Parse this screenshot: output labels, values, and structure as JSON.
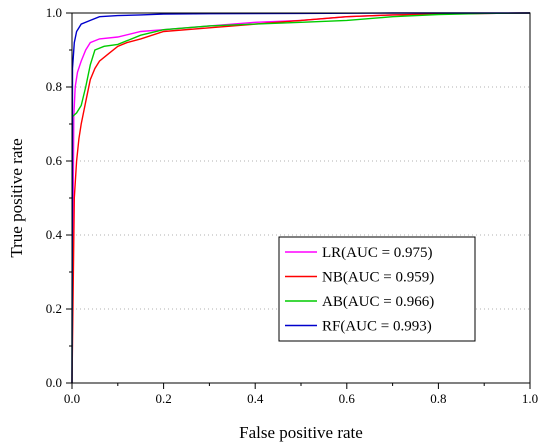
{
  "chart_data": {
    "type": "line",
    "xlabel": "False positive rate",
    "ylabel": "True positive rate",
    "xlim": [
      0,
      1
    ],
    "ylim": [
      0,
      1
    ],
    "x_ticks": [
      "0.0",
      "0.2",
      "0.4",
      "0.6",
      "0.8",
      "1.0"
    ],
    "y_ticks": [
      "0.0",
      "0.2",
      "0.4",
      "0.6",
      "0.8",
      "1.0"
    ],
    "grid": "horizontal dotted",
    "legend_position": "bottom-right",
    "series": [
      {
        "name": "LR(AUC = 0.975)",
        "color": "#ff00ff",
        "points": [
          [
            0,
            0
          ],
          [
            0.002,
            0.4
          ],
          [
            0.004,
            0.72
          ],
          [
            0.007,
            0.8
          ],
          [
            0.012,
            0.84
          ],
          [
            0.02,
            0.87
          ],
          [
            0.03,
            0.9
          ],
          [
            0.04,
            0.92
          ],
          [
            0.06,
            0.93
          ],
          [
            0.1,
            0.935
          ],
          [
            0.15,
            0.95
          ],
          [
            0.2,
            0.955
          ],
          [
            0.3,
            0.965
          ],
          [
            0.4,
            0.975
          ],
          [
            0.5,
            0.98
          ],
          [
            0.6,
            0.99
          ],
          [
            0.7,
            0.995
          ],
          [
            0.8,
            0.998
          ],
          [
            0.9,
            0.999
          ],
          [
            1.0,
            1.0
          ]
        ]
      },
      {
        "name": "NB(AUC = 0.959)",
        "color": "#ff0000",
        "points": [
          [
            0,
            0
          ],
          [
            0.005,
            0.5
          ],
          [
            0.01,
            0.6
          ],
          [
            0.015,
            0.66
          ],
          [
            0.02,
            0.7
          ],
          [
            0.03,
            0.76
          ],
          [
            0.04,
            0.82
          ],
          [
            0.05,
            0.85
          ],
          [
            0.06,
            0.87
          ],
          [
            0.08,
            0.89
          ],
          [
            0.1,
            0.91
          ],
          [
            0.12,
            0.92
          ],
          [
            0.15,
            0.93
          ],
          [
            0.2,
            0.95
          ],
          [
            0.3,
            0.96
          ],
          [
            0.4,
            0.97
          ],
          [
            0.5,
            0.98
          ],
          [
            0.6,
            0.99
          ],
          [
            0.7,
            0.995
          ],
          [
            0.85,
            0.998
          ],
          [
            1.0,
            1.0
          ]
        ]
      },
      {
        "name": "AB(AUC = 0.966)",
        "color": "#00cc00",
        "points": [
          [
            0,
            0
          ],
          [
            0.001,
            0.72
          ],
          [
            0.01,
            0.73
          ],
          [
            0.02,
            0.75
          ],
          [
            0.03,
            0.8
          ],
          [
            0.04,
            0.86
          ],
          [
            0.05,
            0.9
          ],
          [
            0.07,
            0.91
          ],
          [
            0.1,
            0.915
          ],
          [
            0.15,
            0.94
          ],
          [
            0.2,
            0.955
          ],
          [
            0.3,
            0.965
          ],
          [
            0.4,
            0.97
          ],
          [
            0.5,
            0.975
          ],
          [
            0.6,
            0.98
          ],
          [
            0.7,
            0.99
          ],
          [
            0.8,
            0.996
          ],
          [
            0.9,
            0.999
          ],
          [
            1.0,
            1.0
          ]
        ]
      },
      {
        "name": "RF(AUC = 0.993)",
        "color": "#0000cc",
        "points": [
          [
            0,
            0
          ],
          [
            0.001,
            0.85
          ],
          [
            0.005,
            0.92
          ],
          [
            0.01,
            0.95
          ],
          [
            0.02,
            0.97
          ],
          [
            0.04,
            0.98
          ],
          [
            0.06,
            0.99
          ],
          [
            0.1,
            0.993
          ],
          [
            0.15,
            0.995
          ],
          [
            0.2,
            0.997
          ],
          [
            0.3,
            0.998
          ],
          [
            0.5,
            0.999
          ],
          [
            0.7,
            1.0
          ],
          [
            1.0,
            1.0
          ]
        ]
      }
    ]
  }
}
